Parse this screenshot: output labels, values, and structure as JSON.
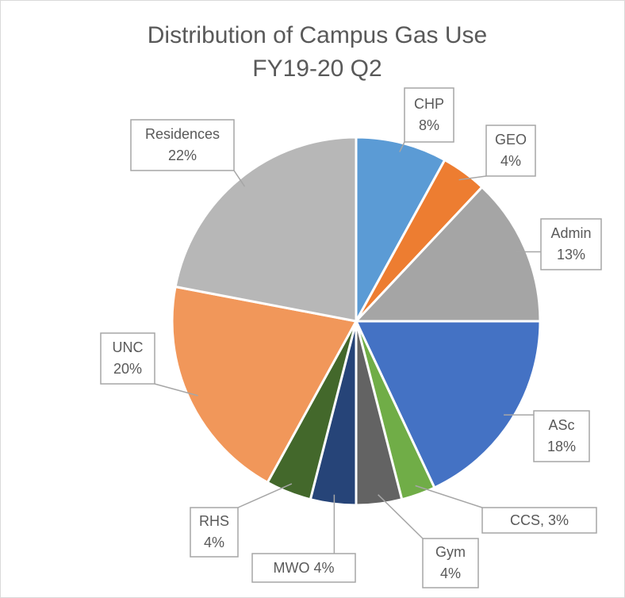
{
  "chart_data": {
    "type": "pie",
    "title": [
      "Distribution of Campus Gas Use",
      "FY19-20 Q2"
    ],
    "categories": [
      "CHP",
      "GEO",
      "Admin",
      "ASc",
      "CCS",
      "Gym",
      "MWO",
      "RHS",
      "UNC",
      "Residences"
    ],
    "values": [
      8,
      4,
      13,
      18,
      3,
      4,
      4,
      4,
      20,
      22
    ],
    "value_labels": [
      "8%",
      "4%",
      "13%",
      "18%",
      ", 3%",
      "4%",
      " 4%",
      "4%",
      "20%",
      "22%"
    ],
    "colors": [
      "#5b9bd5",
      "#ed7d31",
      "#a5a5a5",
      "#4472c4",
      "#70ad47",
      "#636363",
      "#264478",
      "#43682b",
      "#f1975a",
      "#b7b7b7"
    ]
  }
}
